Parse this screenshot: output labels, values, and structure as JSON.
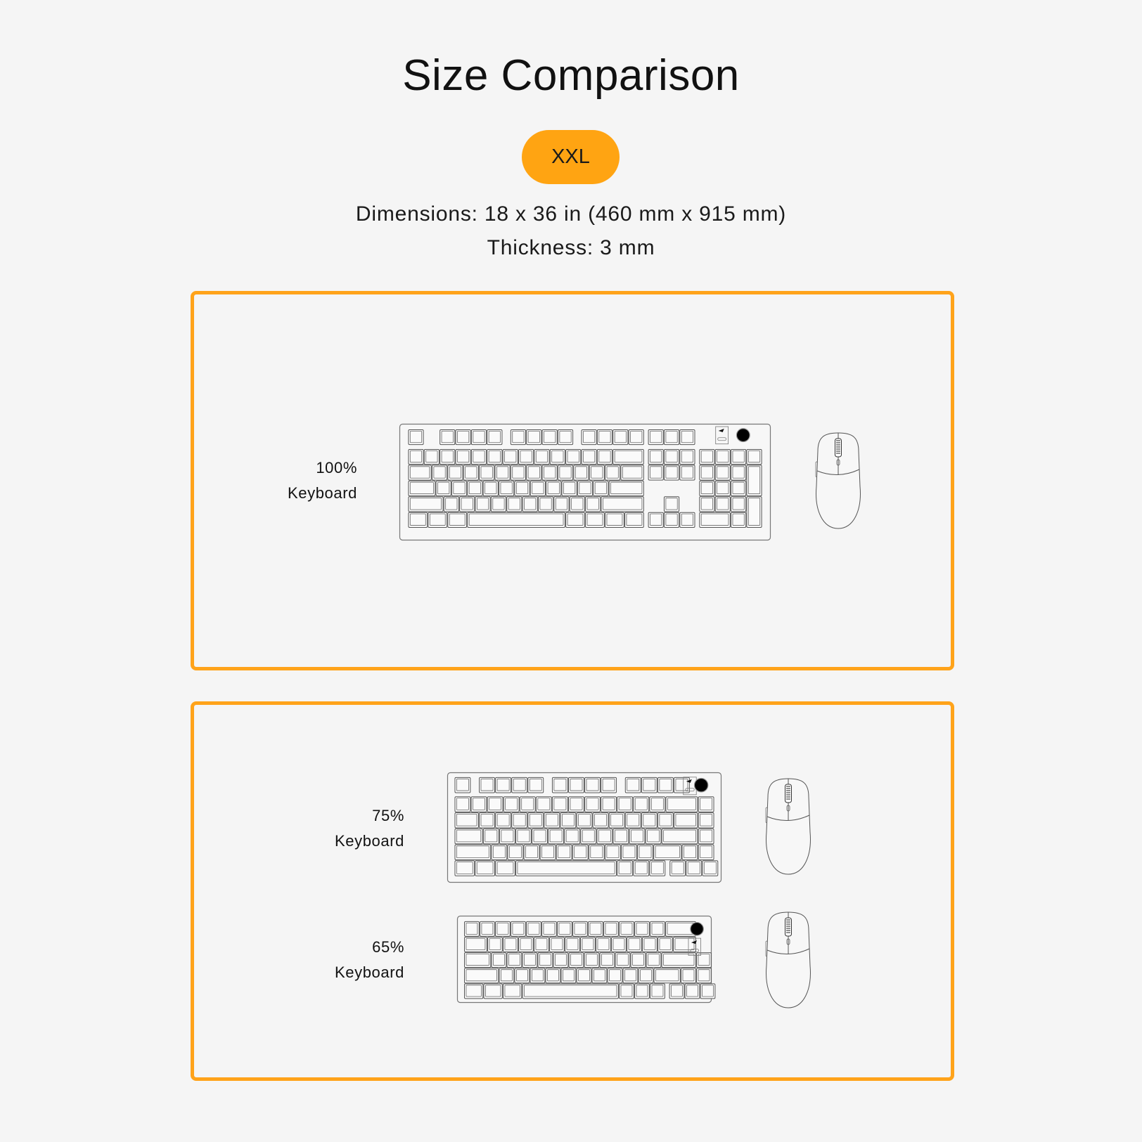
{
  "title": "Size Comparison",
  "size_badge": "XXL",
  "dimensions": "Dimensions: 18 x 36 in (460 mm x 915 mm)",
  "thickness": "Thickness: 3 mm",
  "accent_color": "#FFA412",
  "panels": [
    {
      "items": [
        {
          "label_line1": "100%",
          "label_line2": "Keyboard",
          "keyboard": "100%"
        }
      ]
    },
    {
      "items": [
        {
          "label_line1": "75%",
          "label_line2": "Keyboard",
          "keyboard": "75%"
        },
        {
          "label_line1": "65%",
          "label_line2": "Keyboard",
          "keyboard": "65%"
        }
      ]
    }
  ]
}
